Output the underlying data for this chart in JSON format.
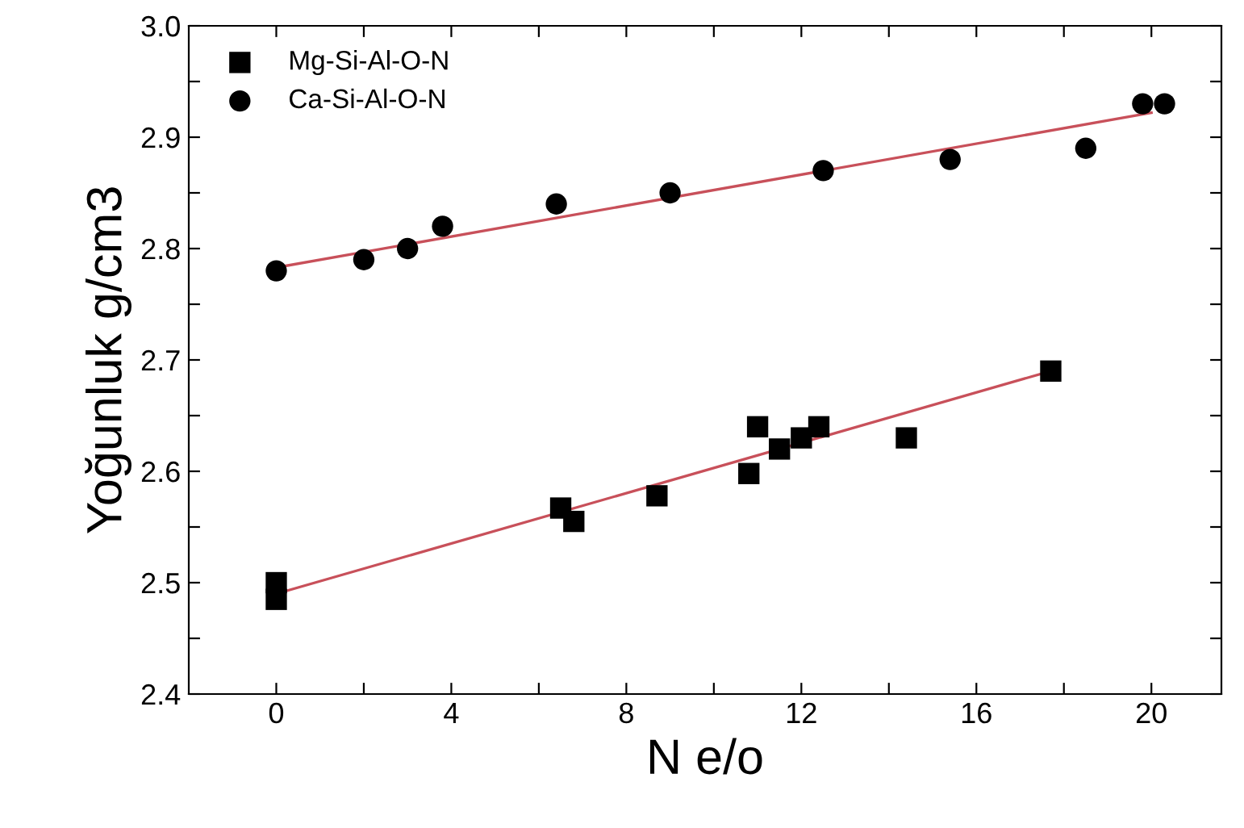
{
  "chart_data": {
    "type": "scatter",
    "xlabel": "N e/o",
    "ylabel": "Yoğunluk g/cm3",
    "xlim": [
      -2,
      21.6
    ],
    "ylim": [
      2.4,
      3.0
    ],
    "xticks": [
      0,
      {
        "value": 2,
        "label": null
      },
      4,
      {
        "value": 6,
        "label": null
      },
      8,
      {
        "value": 10,
        "label": null
      },
      12,
      {
        "value": 14,
        "label": null
      },
      16,
      {
        "value": 18,
        "label": null
      },
      20
    ],
    "yticks": [
      2.4,
      {
        "value": 2.45,
        "label": null
      },
      2.5,
      {
        "value": 2.55,
        "label": null
      },
      2.6,
      {
        "value": 2.65,
        "label": null
      },
      2.7,
      {
        "value": 2.75,
        "label": null
      },
      2.8,
      {
        "value": 2.85,
        "label": null
      },
      2.9,
      {
        "value": 2.95,
        "label": null
      },
      {
        "value": 3.0,
        "label": "3.0"
      }
    ],
    "grid": false,
    "legend": "top left",
    "series": [
      {
        "name": "Mg-Si-Al-O-N",
        "color": "#000000",
        "marker": "square",
        "x": [
          0,
          0,
          6.5,
          6.8,
          8.7,
          10.8,
          11.0,
          11.5,
          12.0,
          12.4,
          14.4,
          17.7
        ],
        "values": [
          2.5,
          2.485,
          2.567,
          2.555,
          2.578,
          2.598,
          2.64,
          2.62,
          2.63,
          2.64,
          2.63,
          2.69
        ]
      },
      {
        "name": "Ca-Si-Al-O-N",
        "color": "#000000",
        "marker": "circle",
        "x": [
          0,
          2,
          3,
          3.8,
          6.4,
          9,
          12.5,
          15.4,
          18.5,
          19.8,
          20.3
        ],
        "values": [
          2.78,
          2.79,
          2.8,
          2.82,
          2.84,
          2.85,
          2.87,
          2.88,
          2.89,
          2.93,
          2.93
        ]
      },
      {
        "type": "line",
        "color": "#c8505a",
        "marker": "none",
        "x": [
          0,
          17.7
        ],
        "values": [
          2.49,
          2.69
        ]
      },
      {
        "type": "line",
        "color": "#c8505a",
        "marker": "none",
        "x": [
          0,
          20
        ],
        "values": [
          2.783,
          2.922
        ]
      }
    ]
  }
}
